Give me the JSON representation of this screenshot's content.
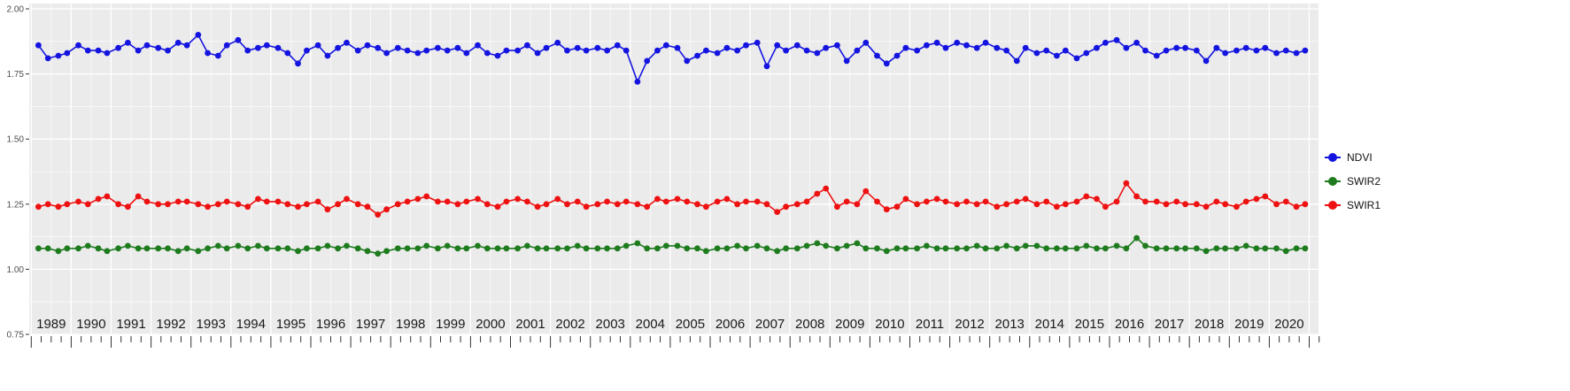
{
  "chart_data": {
    "type": "line",
    "x_axis": {
      "tick_years": [
        1989,
        1990,
        1991,
        1992,
        1993,
        1994,
        1995,
        1996,
        1997,
        1998,
        1999,
        2000,
        2001,
        2002,
        2003,
        2004,
        2005,
        2006,
        2007,
        2008,
        2009,
        2010,
        2011,
        2012,
        2013,
        2014,
        2015,
        2016,
        2017,
        2018,
        2019,
        2020
      ],
      "range": [
        1988.45,
        2020.7
      ],
      "minor_tick_step": 0.25
    },
    "y_axis": {
      "tick_labels": [
        "2.00",
        "1.75",
        "1.50",
        "1.25",
        "1.00",
        "0.75"
      ],
      "tick_values": [
        2.0,
        1.75,
        1.5,
        1.25,
        1.0,
        0.75
      ],
      "minor_tick_values": [
        1.875,
        1.625,
        1.375,
        1.125,
        0.875
      ],
      "range": [
        0.75,
        2.0
      ]
    },
    "legend": {
      "position": "right",
      "items": [
        {
          "label": "NDVI",
          "color": "#1414E0"
        },
        {
          "label": "SWIR2",
          "color": "#1E7B1E"
        },
        {
          "label": "SWIR1",
          "color": "#EE1111"
        }
      ]
    },
    "style": {
      "panel_bg": "#EBEBEB",
      "grid_color": "#FFFFFF",
      "tick_color": "#333333",
      "axis_text_color": "#4D4D4D",
      "x_label_color": "#1A1A1A"
    },
    "x": [
      1988.68,
      1988.92,
      1989.18,
      1989.4,
      1989.68,
      1989.92,
      1990.18,
      1990.4,
      1990.68,
      1990.92,
      1991.18,
      1991.4,
      1991.68,
      1991.92,
      1992.18,
      1992.4,
      1992.68,
      1992.92,
      1993.18,
      1993.4,
      1993.68,
      1993.92,
      1994.18,
      1994.4,
      1994.68,
      1994.92,
      1995.18,
      1995.4,
      1995.68,
      1995.92,
      1996.18,
      1996.4,
      1996.68,
      1996.92,
      1997.18,
      1997.4,
      1997.68,
      1997.92,
      1998.18,
      1998.4,
      1998.68,
      1998.92,
      1999.18,
      1999.4,
      1999.68,
      1999.92,
      2000.18,
      2000.4,
      2000.68,
      2000.92,
      2001.18,
      2001.4,
      2001.68,
      2001.92,
      2002.18,
      2002.4,
      2002.68,
      2002.92,
      2003.18,
      2003.4,
      2003.68,
      2003.92,
      2004.18,
      2004.4,
      2004.68,
      2004.92,
      2005.18,
      2005.4,
      2005.68,
      2005.92,
      2006.18,
      2006.4,
      2006.68,
      2006.92,
      2007.18,
      2007.4,
      2007.68,
      2007.92,
      2008.18,
      2008.4,
      2008.68,
      2008.92,
      2009.18,
      2009.4,
      2009.68,
      2009.92,
      2010.18,
      2010.4,
      2010.68,
      2010.92,
      2011.18,
      2011.4,
      2011.68,
      2011.92,
      2012.18,
      2012.4,
      2012.68,
      2012.92,
      2013.18,
      2013.4,
      2013.68,
      2013.92,
      2014.18,
      2014.4,
      2014.68,
      2014.92,
      2015.18,
      2015.4,
      2015.68,
      2015.92,
      2016.18,
      2016.4,
      2016.68,
      2016.92,
      2017.18,
      2017.4,
      2017.68,
      2017.92,
      2018.18,
      2018.4,
      2018.68,
      2018.92,
      2019.18,
      2019.4,
      2019.68,
      2019.92,
      2020.18,
      2020.4
    ],
    "series": [
      {
        "name": "NDVI",
        "color": "#1414E0",
        "values": [
          1.86,
          1.81,
          1.82,
          1.83,
          1.86,
          1.84,
          1.84,
          1.83,
          1.85,
          1.87,
          1.84,
          1.86,
          1.85,
          1.84,
          1.87,
          1.86,
          1.9,
          1.83,
          1.82,
          1.86,
          1.88,
          1.84,
          1.85,
          1.86,
          1.85,
          1.83,
          1.79,
          1.84,
          1.86,
          1.82,
          1.85,
          1.87,
          1.84,
          1.86,
          1.85,
          1.83,
          1.85,
          1.84,
          1.83,
          1.84,
          1.85,
          1.84,
          1.85,
          1.83,
          1.86,
          1.83,
          1.82,
          1.84,
          1.84,
          1.86,
          1.83,
          1.85,
          1.87,
          1.84,
          1.85,
          1.84,
          1.85,
          1.84,
          1.86,
          1.84,
          1.72,
          1.8,
          1.84,
          1.86,
          1.85,
          1.8,
          1.82,
          1.84,
          1.83,
          1.85,
          1.84,
          1.86,
          1.87,
          1.78,
          1.86,
          1.84,
          1.86,
          1.84,
          1.83,
          1.85,
          1.86,
          1.8,
          1.84,
          1.87,
          1.82,
          1.79,
          1.82,
          1.85,
          1.84,
          1.86,
          1.87,
          1.85,
          1.87,
          1.86,
          1.85,
          1.87,
          1.85,
          1.84,
          1.8,
          1.85,
          1.83,
          1.84,
          1.82,
          1.84,
          1.81,
          1.83,
          1.85,
          1.87,
          1.88,
          1.85,
          1.87,
          1.84,
          1.82,
          1.84,
          1.85,
          1.85,
          1.84,
          1.8,
          1.85,
          1.83,
          1.84,
          1.85,
          1.84,
          1.85,
          1.83,
          1.84,
          1.83,
          1.84
        ]
      },
      {
        "name": "SWIR2",
        "color": "#1E7B1E",
        "values": [
          1.08,
          1.08,
          1.07,
          1.08,
          1.08,
          1.09,
          1.08,
          1.07,
          1.08,
          1.09,
          1.08,
          1.08,
          1.08,
          1.08,
          1.07,
          1.08,
          1.07,
          1.08,
          1.09,
          1.08,
          1.09,
          1.08,
          1.09,
          1.08,
          1.08,
          1.08,
          1.07,
          1.08,
          1.08,
          1.09,
          1.08,
          1.09,
          1.08,
          1.07,
          1.06,
          1.07,
          1.08,
          1.08,
          1.08,
          1.09,
          1.08,
          1.09,
          1.08,
          1.08,
          1.09,
          1.08,
          1.08,
          1.08,
          1.08,
          1.09,
          1.08,
          1.08,
          1.08,
          1.08,
          1.09,
          1.08,
          1.08,
          1.08,
          1.08,
          1.09,
          1.1,
          1.08,
          1.08,
          1.09,
          1.09,
          1.08,
          1.08,
          1.07,
          1.08,
          1.08,
          1.09,
          1.08,
          1.09,
          1.08,
          1.07,
          1.08,
          1.08,
          1.09,
          1.1,
          1.09,
          1.08,
          1.09,
          1.1,
          1.08,
          1.08,
          1.07,
          1.08,
          1.08,
          1.08,
          1.09,
          1.08,
          1.08,
          1.08,
          1.08,
          1.09,
          1.08,
          1.08,
          1.09,
          1.08,
          1.09,
          1.09,
          1.08,
          1.08,
          1.08,
          1.08,
          1.09,
          1.08,
          1.08,
          1.09,
          1.08,
          1.12,
          1.09,
          1.08,
          1.08,
          1.08,
          1.08,
          1.08,
          1.07,
          1.08,
          1.08,
          1.08,
          1.09,
          1.08,
          1.08,
          1.08,
          1.07,
          1.08,
          1.08
        ]
      },
      {
        "name": "SWIR1",
        "color": "#EE1111",
        "values": [
          1.24,
          1.25,
          1.24,
          1.25,
          1.26,
          1.25,
          1.27,
          1.28,
          1.25,
          1.24,
          1.28,
          1.26,
          1.25,
          1.25,
          1.26,
          1.26,
          1.25,
          1.24,
          1.25,
          1.26,
          1.25,
          1.24,
          1.27,
          1.26,
          1.26,
          1.25,
          1.24,
          1.25,
          1.26,
          1.23,
          1.25,
          1.27,
          1.25,
          1.24,
          1.21,
          1.23,
          1.25,
          1.26,
          1.27,
          1.28,
          1.26,
          1.26,
          1.25,
          1.26,
          1.27,
          1.25,
          1.24,
          1.26,
          1.27,
          1.26,
          1.24,
          1.25,
          1.27,
          1.25,
          1.26,
          1.24,
          1.25,
          1.26,
          1.25,
          1.26,
          1.25,
          1.24,
          1.27,
          1.26,
          1.27,
          1.26,
          1.25,
          1.24,
          1.26,
          1.27,
          1.25,
          1.26,
          1.26,
          1.25,
          1.22,
          1.24,
          1.25,
          1.26,
          1.29,
          1.31,
          1.24,
          1.26,
          1.25,
          1.3,
          1.26,
          1.23,
          1.24,
          1.27,
          1.25,
          1.26,
          1.27,
          1.26,
          1.25,
          1.26,
          1.25,
          1.26,
          1.24,
          1.25,
          1.26,
          1.27,
          1.25,
          1.26,
          1.24,
          1.25,
          1.26,
          1.28,
          1.27,
          1.24,
          1.26,
          1.33,
          1.28,
          1.26,
          1.26,
          1.25,
          1.26,
          1.25,
          1.25,
          1.24,
          1.26,
          1.25,
          1.24,
          1.26,
          1.27,
          1.28,
          1.25,
          1.26,
          1.24,
          1.25
        ]
      }
    ]
  }
}
